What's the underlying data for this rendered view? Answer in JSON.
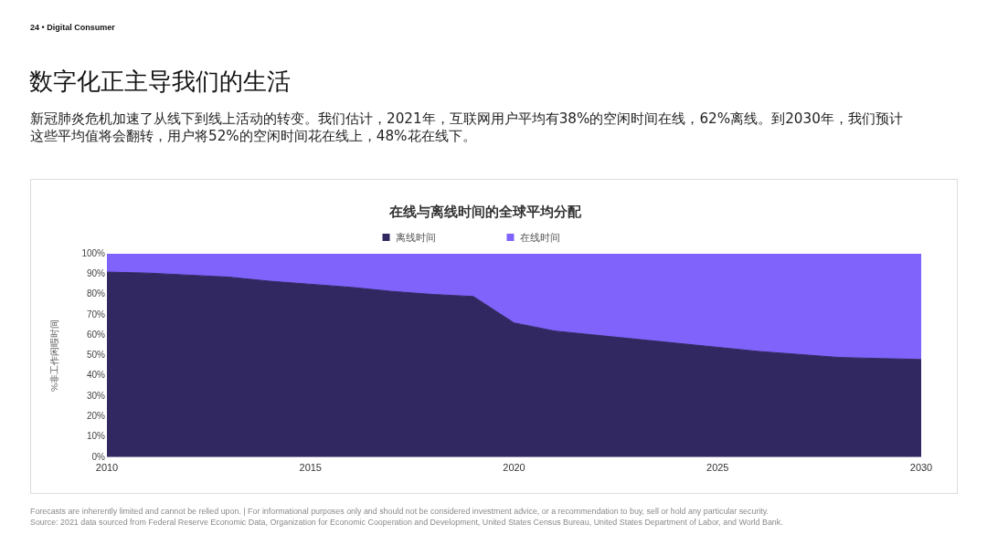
{
  "chart_data": {
    "type": "area",
    "stacked": true,
    "title": "数字化正主导我们的生活",
    "subtitle": "新冠肺炎危机加速了从线下到线上活动的转变。我们估计，2021年，互联网用户平均有38%的空闲时间在线，62%离线。到2030年，我们预计这些平均值将会翻转，用户将52%的空闲时间花在线上，48%花在线下。",
    "ylabel": "%非工作闲暇时间",
    "annotations": [
      "24 • Digital Consumer",
      "在线与离线时间的全球平均分配",
      "Forecasts are inherently limited and cannot be relied upon. | For informational purposes only and should not be considered investment advice, or a recommendation to buy, sell or hold any particular security.",
      "Source: 2021 data sourced from Federal Reserve Economic Data, Organization for Economic Cooperation and Development, United States Census Bureau, United States Department of Labor, and World Bank."
    ],
    "x": [
      2010,
      2011,
      2012,
      2013,
      2014,
      2015,
      2016,
      2017,
      2018,
      2019,
      2020,
      2021,
      2022,
      2023,
      2024,
      2025,
      2026,
      2027,
      2028,
      2029,
      2030
    ],
    "xlim": [
      2010,
      2030
    ],
    "xticks": [
      2010,
      2015,
      2020,
      2025,
      2030
    ],
    "ylim": [
      0,
      100
    ],
    "yticks": [
      {
        "value": 0,
        "label": "0%"
      },
      {
        "value": 10,
        "label": "10%"
      },
      {
        "value": 20,
        "label": "20%"
      },
      {
        "value": 30,
        "label": "30%"
      },
      {
        "value": 40,
        "label": "40%"
      },
      {
        "value": 50,
        "label": "50%"
      },
      {
        "value": 60,
        "label": "60%"
      },
      {
        "value": 70,
        "label": "70%"
      },
      {
        "value": 80,
        "label": "80%"
      },
      {
        "value": 90,
        "label": "90%"
      },
      {
        "value": 100,
        "label": "100%"
      }
    ],
    "legend": "top",
    "series": [
      {
        "name": "离线时间",
        "color": "#312862",
        "values": [
          91,
          90.5,
          89.5,
          88.5,
          86.5,
          85,
          83.5,
          81.5,
          80,
          79,
          66,
          62,
          60,
          58,
          56,
          54,
          52,
          50.5,
          49,
          48.5,
          48
        ]
      },
      {
        "name": "在线时间",
        "color": "#7f63fa",
        "values": [
          9,
          9.5,
          10.5,
          11.5,
          13.5,
          15,
          16.5,
          18.5,
          20,
          21,
          34,
          38,
          40,
          42,
          44,
          46,
          48,
          49.5,
          51,
          51.5,
          52
        ]
      }
    ]
  }
}
